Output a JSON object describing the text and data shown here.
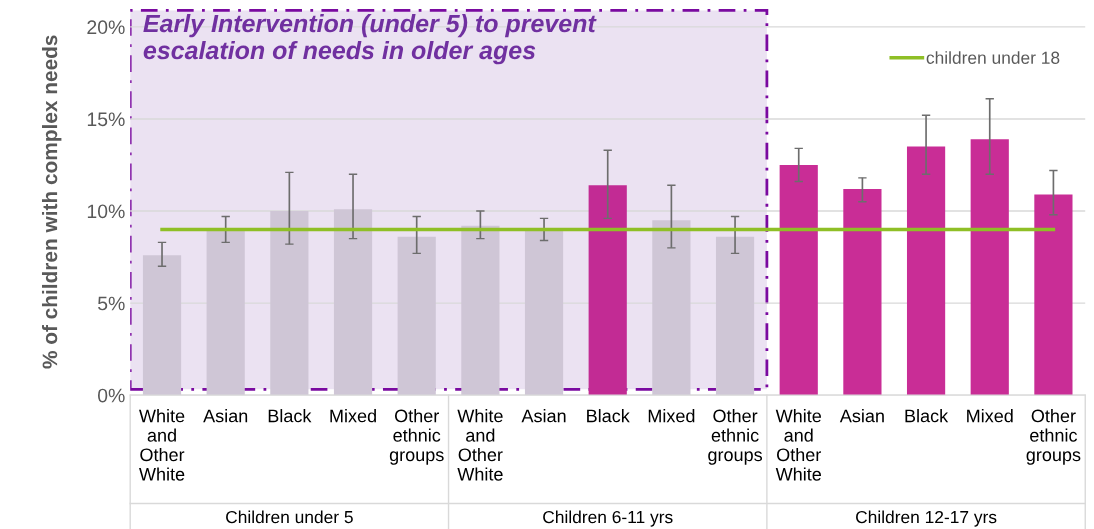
{
  "chart_data": {
    "type": "bar",
    "ylabel": "% of children with complex needs",
    "categories": [
      "White\nand\nOther\nWhite",
      "Asian",
      "Black",
      "Mixed",
      "Other\nethnic\ngroups",
      "White\nand\nOther\nWhite",
      "Asian",
      "Black",
      "Mixed",
      "Other\nethnic\ngroups",
      "White\nand\nOther\nWhite",
      "Asian",
      "Black",
      "Mixed",
      "Other\nethnic\ngroups"
    ],
    "series": [
      {
        "values": [
          7.6,
          9.0,
          10.0,
          10.1,
          8.6,
          9.2,
          9.0,
          11.4,
          9.5,
          8.6,
          12.5,
          11.2,
          13.5,
          13.9,
          10.9
        ],
        "colors": [
          "#cfc6d6",
          "#cfc6d6",
          "#cfc6d6",
          "#cfc6d6",
          "#cfc6d6",
          "#cfc6d6",
          "#cfc6d6",
          "#c22b94",
          "#cfc6d6",
          "#cfc6d6",
          "#c92d96",
          "#c92d96",
          "#c92d96",
          "#c92d96",
          "#c92d96"
        ],
        "errors": [
          [
            7.0,
            8.3
          ],
          [
            8.3,
            9.7
          ],
          [
            8.2,
            12.1
          ],
          [
            8.5,
            12.0
          ],
          [
            7.7,
            9.7
          ],
          [
            8.5,
            10.0
          ],
          [
            8.4,
            9.6
          ],
          [
            9.6,
            13.3
          ],
          [
            8.0,
            11.4
          ],
          [
            7.7,
            9.7
          ],
          [
            11.6,
            13.4
          ],
          [
            10.5,
            11.8
          ],
          [
            12.0,
            15.2
          ],
          [
            12.0,
            16.1
          ],
          [
            9.8,
            12.2
          ]
        ]
      },
      {
        "type": "line",
        "name": "children under 18",
        "color": "#8fbf26",
        "values": [
          9.0,
          9.0,
          9.0,
          9.0,
          9.0,
          9.0,
          9.0,
          9.0,
          9.0,
          9.0,
          9.0,
          9.0,
          9.0,
          9.0,
          9.0
        ]
      }
    ],
    "ylim": [
      0,
      21
    ],
    "yticks": [
      {
        "value": 0,
        "label": "0%"
      },
      {
        "value": 5,
        "label": "5%"
      },
      {
        "value": 10,
        "label": "10%"
      },
      {
        "value": 15,
        "label": "15%"
      },
      {
        "value": 20,
        "label": "20%"
      }
    ],
    "annotations": [
      "Early Intervention (under 5) to prevent\nescalation of needs in older ages",
      "Children under 5",
      "Children 6-11 yrs",
      "Children 12-17 yrs"
    ],
    "grid": "y",
    "legend": "top right"
  }
}
